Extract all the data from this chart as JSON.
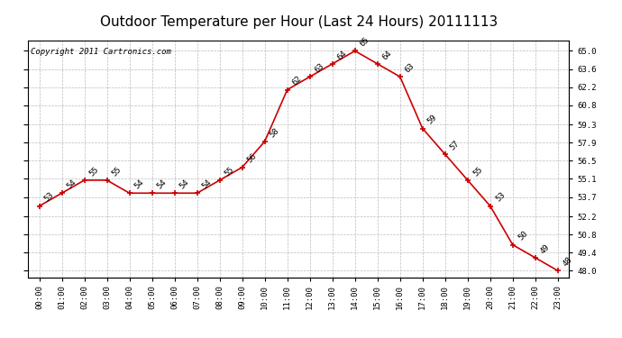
{
  "title": "Outdoor Temperature per Hour (Last 24 Hours) 20111113",
  "copyright_text": "Copyright 2011 Cartronics.com",
  "hours": [
    "00:00",
    "01:00",
    "02:00",
    "03:00",
    "04:00",
    "05:00",
    "06:00",
    "07:00",
    "08:00",
    "09:00",
    "10:00",
    "11:00",
    "12:00",
    "13:00",
    "14:00",
    "15:00",
    "16:00",
    "17:00",
    "18:00",
    "19:00",
    "20:00",
    "21:00",
    "22:00",
    "23:00"
  ],
  "temps": [
    53,
    54,
    55,
    55,
    54,
    54,
    54,
    54,
    55,
    56,
    58,
    62,
    63,
    64,
    65,
    64,
    63,
    59,
    57,
    55,
    53,
    50,
    49,
    48
  ],
  "line_color": "#cc0000",
  "marker_color": "#cc0000",
  "bg_color": "#ffffff",
  "grid_color": "#bbbbbb",
  "ylim_min": 47.5,
  "ylim_max": 65.8,
  "yticks": [
    48.0,
    49.4,
    50.8,
    52.2,
    53.7,
    55.1,
    56.5,
    57.9,
    59.3,
    60.8,
    62.2,
    63.6,
    65.0
  ],
  "title_fontsize": 11,
  "copyright_fontsize": 6.5,
  "label_fontsize": 6.5,
  "tick_fontsize": 6.5
}
